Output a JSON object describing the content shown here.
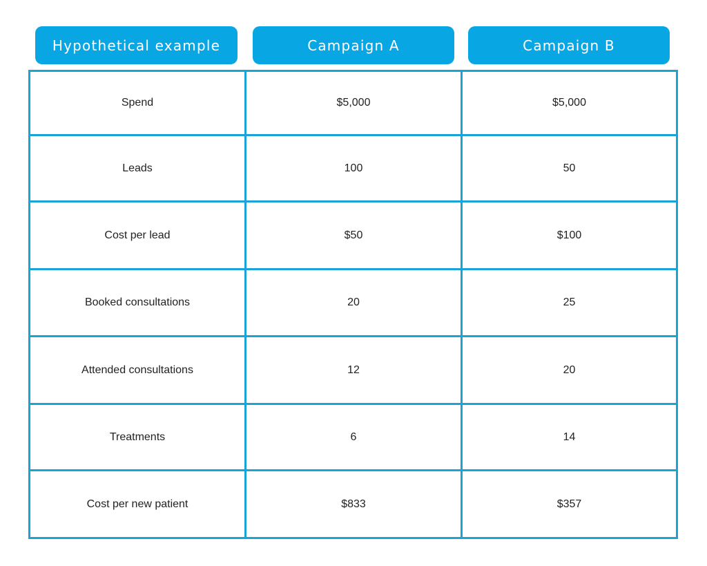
{
  "chart_data": {
    "type": "table",
    "columns": [
      "Hypothetical example",
      "Campaign A",
      "Campaign B"
    ],
    "rows": [
      [
        "Spend",
        "$5,000",
        "$5,000"
      ],
      [
        "Leads",
        "100",
        "50"
      ],
      [
        "Cost per lead",
        "$50",
        "$100"
      ],
      [
        "Booked consultations",
        "20",
        "25"
      ],
      [
        "Attended consultations",
        "12",
        "20"
      ],
      [
        "Treatments",
        "6",
        "14"
      ],
      [
        "Cost per new patient",
        "$833",
        "$357"
      ]
    ]
  },
  "colors": {
    "header_fill": "#09a6e4",
    "grid_border": "#1aa3d6",
    "header_text": "#ffffff",
    "cell_text": "#222222"
  }
}
